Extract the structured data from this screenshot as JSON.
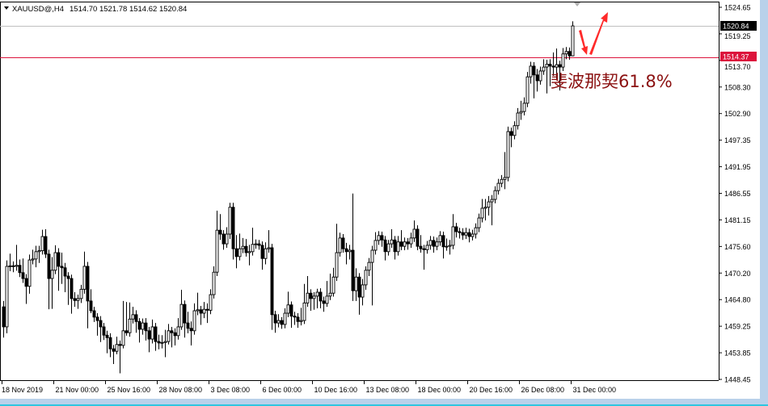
{
  "header": {
    "symbol": "XAUUSD@,H4",
    "ohlc": "1514.70 1521.78 1514.62 1520.84"
  },
  "colors": {
    "background": "#ffffff",
    "candle": "#000000",
    "bid_line": "#c0c0c0",
    "level_line": "#dc143c",
    "annotation_text": "#8b1010",
    "arrow": "#ff2a2a",
    "frame": "#b9d1ea"
  },
  "annotation": {
    "text": "斐波那契61.8%",
    "arrows": [
      "arrow-down",
      "arrow-up"
    ]
  },
  "price_labels": {
    "current": "1520.84",
    "level": "1514.37"
  },
  "chart_data": {
    "type": "candlestick",
    "timeframe": "H4",
    "ylim": [
      1448.45,
      1524.65
    ],
    "y_ticks": [
      "1524.65",
      "1519.25",
      "1513.70",
      "1508.30",
      "1502.90",
      "1497.35",
      "1491.95",
      "1486.55",
      "1481.15",
      "1475.60",
      "1470.20",
      "1464.80",
      "1459.25",
      "1453.85",
      "1448.45"
    ],
    "x_ticks": [
      "18 Nov 2019",
      "21 Nov 00:00",
      "25 Nov 16:00",
      "28 Nov 08:00",
      "3 Dec 08:00",
      "6 Dec 00:00",
      "10 Dec 16:00",
      "13 Dec 08:00",
      "18 Dec 00:00",
      "20 Dec 16:00",
      "26 Dec 08:00",
      "31 Dec 00:00"
    ],
    "horizontal_lines": [
      {
        "value": 1520.84,
        "kind": "bid"
      },
      {
        "value": 1514.37,
        "kind": "level"
      }
    ],
    "ohlc": [
      [
        1463.3,
        1464.5,
        1457.0,
        1459.2
      ],
      [
        1459.2,
        1472.8,
        1457.9,
        1471.6
      ],
      [
        1471.6,
        1474.2,
        1470.6,
        1471.7
      ],
      [
        1471.7,
        1472.6,
        1470.4,
        1471.6
      ],
      [
        1471.6,
        1476.0,
        1470.7,
        1471.8
      ],
      [
        1471.8,
        1473.0,
        1469.4,
        1470.3
      ],
      [
        1470.3,
        1473.2,
        1468.2,
        1469.1
      ],
      [
        1469.1,
        1470.0,
        1463.9,
        1467.5
      ],
      [
        1467.5,
        1474.0,
        1466.0,
        1472.9
      ],
      [
        1472.9,
        1475.0,
        1472.0,
        1473.1
      ],
      [
        1473.1,
        1475.8,
        1471.4,
        1474.6
      ],
      [
        1474.6,
        1475.8,
        1472.3,
        1474.8
      ],
      [
        1474.8,
        1479.1,
        1474.0,
        1477.7
      ],
      [
        1477.7,
        1479.2,
        1473.3,
        1474.1
      ],
      [
        1474.1,
        1475.0,
        1462.8,
        1469.1
      ],
      [
        1469.1,
        1473.5,
        1462.9,
        1470.8
      ],
      [
        1470.8,
        1475.9,
        1470.0,
        1474.4
      ],
      [
        1474.4,
        1475.3,
        1466.6,
        1471.6
      ],
      [
        1471.6,
        1474.4,
        1468.0,
        1471.3
      ],
      [
        1471.3,
        1472.3,
        1466.3,
        1469.6
      ],
      [
        1469.6,
        1470.4,
        1463.7,
        1469.1
      ],
      [
        1469.1,
        1469.9,
        1461.9,
        1465.0
      ],
      [
        1465.0,
        1466.3,
        1463.3,
        1464.6
      ],
      [
        1464.6,
        1465.8,
        1462.9,
        1465.0
      ],
      [
        1465.0,
        1467.8,
        1464.1,
        1466.9
      ],
      [
        1466.9,
        1474.6,
        1466.0,
        1471.6
      ],
      [
        1471.6,
        1472.5,
        1458.9,
        1464.5
      ],
      [
        1464.5,
        1466.9,
        1462.0,
        1462.5
      ],
      [
        1462.5,
        1463.3,
        1460.2,
        1461.2
      ],
      [
        1461.2,
        1462.0,
        1457.4,
        1460.5
      ],
      [
        1460.5,
        1461.4,
        1456.1,
        1459.2
      ],
      [
        1459.2,
        1460.0,
        1456.5,
        1457.5
      ],
      [
        1457.5,
        1458.4,
        1453.8,
        1457.0
      ],
      [
        1457.0,
        1457.9,
        1453.0,
        1454.7
      ],
      [
        1454.7,
        1455.5,
        1451.6,
        1454.2
      ],
      [
        1454.2,
        1457.2,
        1453.6,
        1455.6
      ],
      [
        1455.6,
        1456.4,
        1449.7,
        1455.4
      ],
      [
        1455.4,
        1464.5,
        1454.8,
        1458.4
      ],
      [
        1458.4,
        1464.3,
        1457.4,
        1458.0
      ],
      [
        1458.0,
        1464.2,
        1457.2,
        1460.8
      ],
      [
        1460.8,
        1463.3,
        1459.9,
        1461.7
      ],
      [
        1461.7,
        1462.6,
        1458.0,
        1460.3
      ],
      [
        1460.3,
        1461.0,
        1456.0,
        1458.7
      ],
      [
        1458.7,
        1460.9,
        1457.6,
        1460.0
      ],
      [
        1460.0,
        1461.0,
        1456.4,
        1458.4
      ],
      [
        1458.4,
        1459.2,
        1454.0,
        1456.7
      ],
      [
        1456.7,
        1460.7,
        1455.8,
        1459.2
      ],
      [
        1459.2,
        1460.0,
        1454.3,
        1456.2
      ],
      [
        1456.2,
        1457.6,
        1454.6,
        1455.9
      ],
      [
        1455.9,
        1457.5,
        1454.8,
        1456.0
      ],
      [
        1456.0,
        1458.6,
        1453.0,
        1456.2
      ],
      [
        1456.2,
        1459.8,
        1455.6,
        1458.4
      ],
      [
        1458.4,
        1459.2,
        1455.0,
        1458.0
      ],
      [
        1458.0,
        1458.9,
        1455.4,
        1457.4
      ],
      [
        1457.4,
        1461.0,
        1456.6,
        1459.2
      ],
      [
        1459.2,
        1466.8,
        1458.6,
        1463.8
      ],
      [
        1463.8,
        1464.6,
        1457.0,
        1460.0
      ],
      [
        1460.0,
        1462.3,
        1457.9,
        1458.9
      ],
      [
        1458.9,
        1460.3,
        1455.4,
        1458.4
      ],
      [
        1458.4,
        1464.0,
        1457.6,
        1462.5
      ],
      [
        1462.5,
        1466.2,
        1461.6,
        1462.7
      ],
      [
        1462.7,
        1463.5,
        1459.6,
        1462.0
      ],
      [
        1462.0,
        1464.3,
        1461.0,
        1462.8
      ],
      [
        1462.8,
        1464.0,
        1460.0,
        1462.6
      ],
      [
        1462.6,
        1466.9,
        1461.8,
        1465.8
      ],
      [
        1465.8,
        1471.6,
        1465.0,
        1470.4
      ],
      [
        1470.4,
        1483.0,
        1469.6,
        1479.0
      ],
      [
        1479.0,
        1482.3,
        1477.0,
        1478.2
      ],
      [
        1478.2,
        1479.0,
        1475.0,
        1476.2
      ],
      [
        1476.2,
        1479.6,
        1475.4,
        1478.2
      ],
      [
        1478.2,
        1484.6,
        1477.2,
        1483.7
      ],
      [
        1483.7,
        1484.6,
        1473.0,
        1475.2
      ],
      [
        1475.2,
        1478.0,
        1471.2,
        1473.6
      ],
      [
        1473.6,
        1478.3,
        1472.8,
        1475.2
      ],
      [
        1475.2,
        1477.4,
        1474.3,
        1475.7
      ],
      [
        1475.7,
        1477.2,
        1473.6,
        1474.4
      ],
      [
        1474.4,
        1476.0,
        1471.8,
        1474.6
      ],
      [
        1474.6,
        1479.5,
        1473.8,
        1476.1
      ],
      [
        1476.1,
        1477.1,
        1475.2,
        1476.2
      ],
      [
        1476.2,
        1477.0,
        1475.0,
        1475.9
      ],
      [
        1475.9,
        1476.7,
        1470.9,
        1473.2
      ],
      [
        1473.2,
        1476.5,
        1472.0,
        1475.2
      ],
      [
        1475.2,
        1479.0,
        1474.4,
        1475.4
      ],
      [
        1475.4,
        1476.2,
        1458.6,
        1461.7
      ],
      [
        1461.7,
        1462.5,
        1458.0,
        1460.0
      ],
      [
        1460.0,
        1461.8,
        1459.1,
        1460.5
      ],
      [
        1460.5,
        1461.2,
        1458.8,
        1459.7
      ],
      [
        1459.7,
        1463.0,
        1458.9,
        1462.0
      ],
      [
        1462.0,
        1466.4,
        1461.2,
        1463.7
      ],
      [
        1463.7,
        1464.4,
        1459.0,
        1461.4
      ],
      [
        1461.4,
        1462.3,
        1459.6,
        1461.2
      ],
      [
        1461.2,
        1462.0,
        1459.0,
        1460.3
      ],
      [
        1460.3,
        1463.1,
        1459.5,
        1460.5
      ],
      [
        1460.5,
        1468.0,
        1459.8,
        1464.1
      ],
      [
        1464.1,
        1469.6,
        1463.3,
        1466.1
      ],
      [
        1466.1,
        1466.9,
        1462.5,
        1465.0
      ],
      [
        1465.0,
        1466.3,
        1462.7,
        1465.5
      ],
      [
        1465.5,
        1467.0,
        1463.0,
        1466.3
      ],
      [
        1466.3,
        1467.1,
        1463.0,
        1464.5
      ],
      [
        1464.5,
        1465.4,
        1462.3,
        1464.0
      ],
      [
        1464.0,
        1468.6,
        1463.3,
        1465.5
      ],
      [
        1465.5,
        1470.1,
        1464.7,
        1466.1
      ],
      [
        1466.1,
        1471.3,
        1465.4,
        1469.4
      ],
      [
        1469.4,
        1480.3,
        1468.6,
        1474.4
      ],
      [
        1474.4,
        1478.5,
        1473.6,
        1477.4
      ],
      [
        1477.4,
        1478.2,
        1474.4,
        1475.2
      ],
      [
        1475.2,
        1476.4,
        1472.0,
        1474.6
      ],
      [
        1474.6,
        1476.0,
        1473.0,
        1474.9
      ],
      [
        1474.9,
        1486.5,
        1464.5,
        1466.6
      ],
      [
        1466.6,
        1471.2,
        1464.5,
        1469.4
      ],
      [
        1469.4,
        1470.2,
        1461.7,
        1465.3
      ],
      [
        1465.3,
        1469.0,
        1463.6,
        1467.8
      ],
      [
        1467.8,
        1471.6,
        1466.8,
        1470.8
      ],
      [
        1470.8,
        1473.3,
        1469.6,
        1472.4
      ],
      [
        1472.4,
        1475.8,
        1463.6,
        1474.9
      ],
      [
        1474.9,
        1478.6,
        1474.0,
        1476.9
      ],
      [
        1476.9,
        1478.8,
        1476.0,
        1477.9
      ],
      [
        1477.9,
        1478.7,
        1475.6,
        1477.0
      ],
      [
        1477.0,
        1477.8,
        1472.8,
        1474.6
      ],
      [
        1474.6,
        1477.0,
        1473.8,
        1476.2
      ],
      [
        1476.2,
        1479.2,
        1475.4,
        1477.0
      ],
      [
        1477.0,
        1477.8,
        1473.0,
        1474.6
      ],
      [
        1474.6,
        1477.8,
        1473.8,
        1476.6
      ],
      [
        1476.6,
        1479.0,
        1474.9,
        1475.7
      ],
      [
        1475.7,
        1477.5,
        1474.9,
        1476.6
      ],
      [
        1476.6,
        1477.4,
        1475.0,
        1476.2
      ],
      [
        1476.2,
        1478.5,
        1475.4,
        1477.4
      ],
      [
        1477.4,
        1481.0,
        1476.6,
        1479.2
      ],
      [
        1479.2,
        1480.0,
        1474.9,
        1475.7
      ],
      [
        1475.7,
        1478.0,
        1474.4,
        1475.2
      ],
      [
        1475.2,
        1476.0,
        1470.9,
        1475.0
      ],
      [
        1475.0,
        1476.8,
        1474.2,
        1475.9
      ],
      [
        1475.9,
        1477.8,
        1475.0,
        1476.9
      ],
      [
        1476.9,
        1477.7,
        1474.4,
        1475.7
      ],
      [
        1475.7,
        1477.5,
        1474.9,
        1476.6
      ],
      [
        1476.6,
        1478.8,
        1475.8,
        1477.9
      ],
      [
        1477.9,
        1478.7,
        1473.2,
        1475.6
      ],
      [
        1475.6,
        1477.3,
        1474.8,
        1475.7
      ],
      [
        1475.7,
        1477.0,
        1474.0,
        1475.9
      ],
      [
        1475.9,
        1482.3,
        1475.1,
        1479.7
      ],
      [
        1479.7,
        1480.5,
        1477.5,
        1478.7
      ],
      [
        1478.7,
        1479.5,
        1477.3,
        1478.5
      ],
      [
        1478.5,
        1479.4,
        1477.0,
        1478.0
      ],
      [
        1478.0,
        1479.5,
        1477.2,
        1478.5
      ],
      [
        1478.5,
        1479.3,
        1476.5,
        1477.7
      ],
      [
        1477.7,
        1479.1,
        1476.9,
        1478.2
      ],
      [
        1478.2,
        1480.4,
        1477.3,
        1479.5
      ],
      [
        1479.5,
        1482.4,
        1478.6,
        1481.5
      ],
      [
        1481.5,
        1485.4,
        1480.6,
        1483.5
      ],
      [
        1483.5,
        1485.4,
        1481.0,
        1483.7
      ],
      [
        1483.7,
        1486.0,
        1482.0,
        1484.8
      ],
      [
        1484.8,
        1486.2,
        1480.0,
        1485.3
      ],
      [
        1485.3,
        1488.0,
        1484.5,
        1487.1
      ],
      [
        1487.1,
        1489.5,
        1486.3,
        1488.6
      ],
      [
        1488.6,
        1490.3,
        1487.8,
        1489.4
      ],
      [
        1489.4,
        1495.0,
        1487.4,
        1489.8
      ],
      [
        1489.8,
        1500.2,
        1489.0,
        1499.2
      ],
      [
        1499.2,
        1500.0,
        1496.0,
        1498.4
      ],
      [
        1498.4,
        1501.3,
        1497.6,
        1500.4
      ],
      [
        1500.4,
        1504.0,
        1499.6,
        1503.0
      ],
      [
        1503.0,
        1505.5,
        1501.6,
        1503.3
      ],
      [
        1503.3,
        1506.2,
        1502.5,
        1505.0
      ],
      [
        1505.0,
        1511.4,
        1504.2,
        1510.4
      ],
      [
        1510.4,
        1513.5,
        1509.0,
        1512.6
      ],
      [
        1512.6,
        1513.4,
        1506.0,
        1510.8
      ],
      [
        1510.8,
        1512.0,
        1507.4,
        1509.6
      ],
      [
        1509.6,
        1512.5,
        1508.8,
        1511.6
      ],
      [
        1511.6,
        1514.0,
        1510.8,
        1512.4
      ],
      [
        1512.4,
        1513.9,
        1507.0,
        1513.0
      ],
      [
        1513.0,
        1514.0,
        1508.5,
        1512.6
      ],
      [
        1512.6,
        1515.4,
        1510.6,
        1512.4
      ],
      [
        1512.4,
        1516.2,
        1510.0,
        1512.9
      ],
      [
        1512.9,
        1513.7,
        1507.6,
        1512.4
      ],
      [
        1512.4,
        1516.3,
        1511.6,
        1515.1
      ],
      [
        1515.1,
        1516.5,
        1514.0,
        1515.6
      ],
      [
        1515.6,
        1516.4,
        1513.9,
        1514.7
      ],
      [
        1514.7,
        1521.78,
        1514.62,
        1520.84
      ]
    ]
  }
}
